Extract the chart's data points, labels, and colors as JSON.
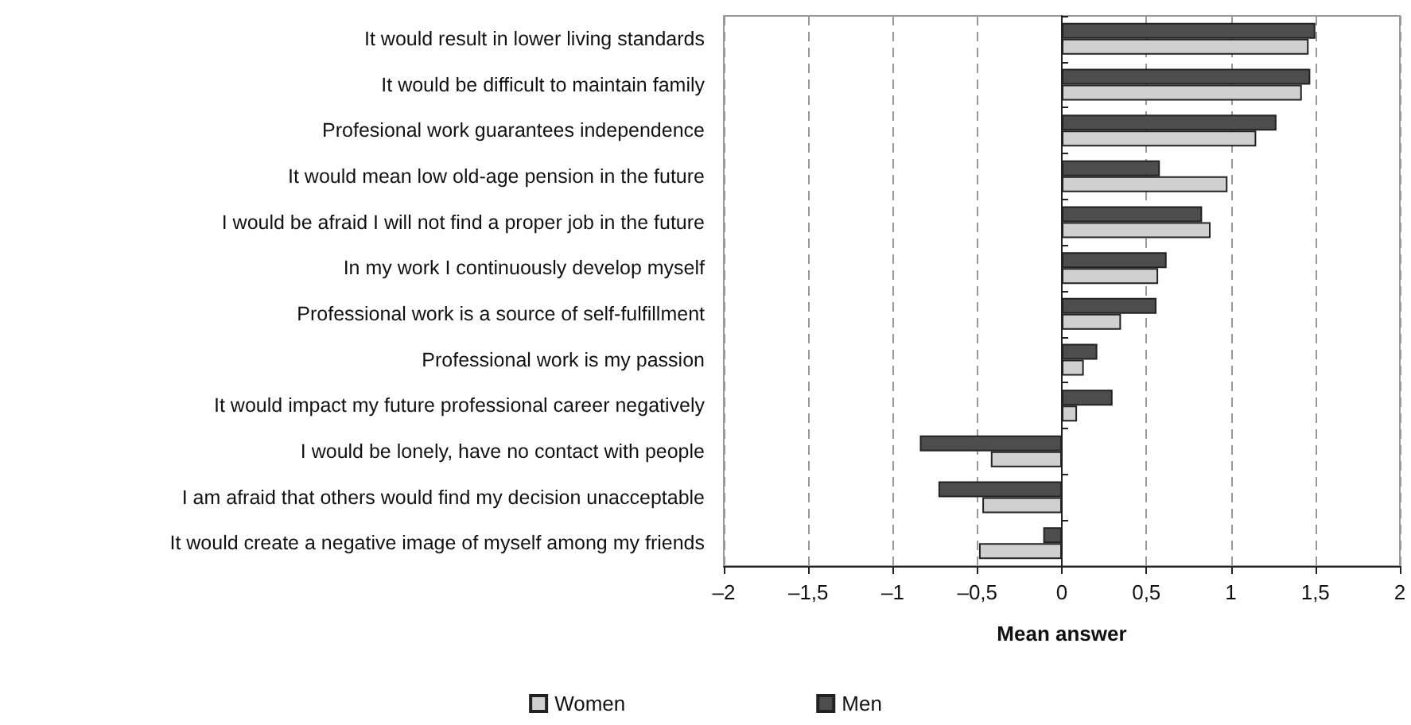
{
  "chart_data": {
    "type": "bar",
    "orientation": "horizontal",
    "xlabel": "Mean answer",
    "categories": [
      "It would result in lower living standards",
      "It would be difficult to maintain family",
      "Profesional work guarantees independence",
      "It would mean low old-age pension in the future",
      "I would be afraid I will not find a proper job in the future",
      "In my work I continuously develop myself",
      "Professional work is a source of self-fulfillment",
      "Professional work is my passion",
      "It would impact my future professional career negatively",
      "I would be lonely, have no contact with people",
      "I am afraid that others would find my decision unacceptable",
      "It would create a negative image of myself among my friends"
    ],
    "series": [
      {
        "name": "Women",
        "color": "#d0d0d0",
        "values": [
          1.46,
          1.42,
          1.15,
          0.98,
          0.88,
          0.57,
          0.35,
          0.13,
          0.09,
          -0.42,
          -0.47,
          -0.49
        ]
      },
      {
        "name": "Men",
        "color": "#4d4d4d",
        "values": [
          1.5,
          1.47,
          1.27,
          0.58,
          0.83,
          0.62,
          0.56,
          0.21,
          0.3,
          -0.84,
          -0.73,
          -0.11
        ]
      }
    ],
    "xlim": [
      -2,
      2
    ],
    "xticks": [
      {
        "value": -2,
        "label": "–2"
      },
      {
        "value": -1.5,
        "label": "–1,5"
      },
      {
        "value": -1,
        "label": "–1"
      },
      {
        "value": -0.5,
        "label": "–0,5"
      },
      0,
      {
        "value": 0.5,
        "label": "0,5"
      },
      1,
      {
        "value": 1.5,
        "label": "1,5"
      },
      2
    ],
    "grid": "x",
    "legend": "bottom"
  }
}
